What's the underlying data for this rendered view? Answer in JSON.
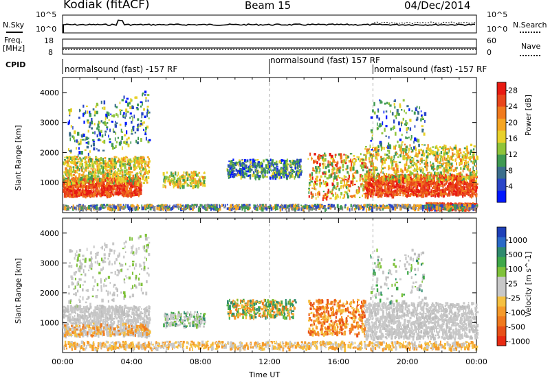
{
  "header": {
    "station": "Kodiak (fitACF)",
    "beam": "Beam 15",
    "date": "04/Dec/2014"
  },
  "noise_panel": {
    "left_label": "N.Sky",
    "left_ticks": [
      "10^5",
      "10^0"
    ],
    "right_label": "N.Search",
    "right_ticks": [
      "10^5",
      "10^0"
    ]
  },
  "freq_panel": {
    "left_label_1": "Freq.",
    "left_label_2": "[MHz]",
    "left_ticks": [
      "18",
      "8"
    ],
    "right_label": "Nave",
    "right_ticks": [
      "60",
      "0"
    ]
  },
  "cpid": {
    "label": "CPID",
    "segments": [
      {
        "text": "normalsound (fast) -157 RF",
        "start_hour": 0
      },
      {
        "text": "normalsound (fast) 157 RF",
        "start_hour": 12
      },
      {
        "text": "normalsound (fast) -157 RF",
        "start_hour": 18
      }
    ]
  },
  "x_axis": {
    "label": "Time UT",
    "ticks": [
      "00:00",
      "04:00",
      "08:00",
      "12:00",
      "16:00",
      "20:00",
      "00:00"
    ]
  },
  "chart_data": [
    {
      "type": "heatmap",
      "ylabel": "Slant Range [km]",
      "yticks": [
        "1000",
        "2000",
        "3000",
        "4000"
      ],
      "colorbar_label": "Power [dB]",
      "colorbar_ticks": [
        "4",
        "8",
        "12",
        "16",
        "20",
        "24",
        "28"
      ],
      "colorbar_colors": [
        "#0018ff",
        "#2a46c8",
        "#3b6e8c",
        "#3f9a52",
        "#8fc43a",
        "#e8d12a",
        "#f5a623",
        "#f07a1e",
        "#e8461c",
        "#e81a12"
      ]
    },
    {
      "type": "heatmap",
      "ylabel": "Slant Range [km]",
      "yticks": [
        "1000",
        "2000",
        "3000",
        "4000"
      ],
      "colorbar_label": "Velocity [m s^-1]",
      "colorbar_ticks": [
        "1000",
        "500",
        "100",
        "25",
        "-25",
        "-100",
        "-500",
        "-1000"
      ],
      "colorbar_colors": [
        "#1e40b8",
        "#2a6ac8",
        "#2f8a6e",
        "#3fa84a",
        "#7fc23a",
        "#c8c8c8",
        "#c8c8c8",
        "#f5c040",
        "#f59a2a",
        "#f07a1e",
        "#e85018",
        "#e82a12"
      ]
    }
  ]
}
